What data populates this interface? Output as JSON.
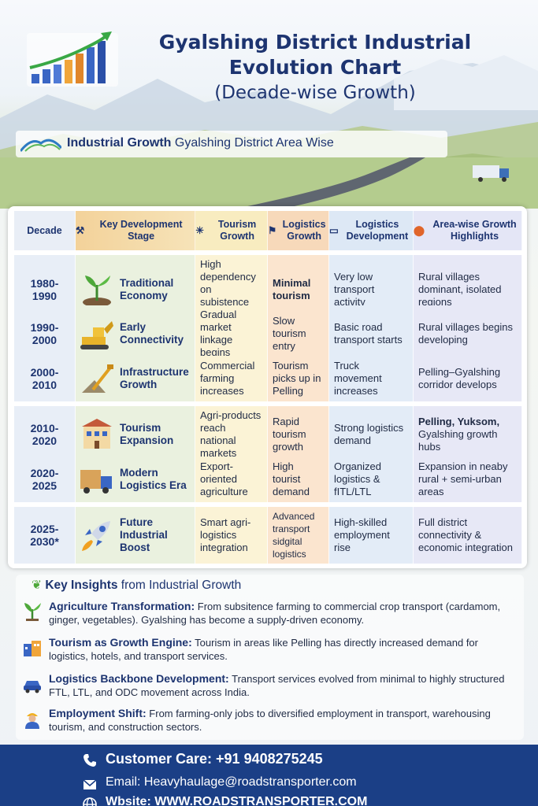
{
  "header": {
    "title_line1": "Gyalshing District Industrial",
    "title_line2": "Evolution Chart",
    "title_line3": "(Decade-wise Growth)",
    "banner_bold": "Industrial Growth",
    "banner_rest": "Gyalshing District Area Wise"
  },
  "table": {
    "headers": [
      "Decade",
      "Key Development Stage",
      "Tourism Growth",
      "Logistics Growth",
      "Logistics Development",
      "Area-wise Growth Highlights"
    ],
    "rows": [
      {
        "decade": "1980-\n1990",
        "stage": "Traditional Economy",
        "tourism": "High dependency on subistence farming",
        "logistics_growth": "Minimal tourism",
        "logistics_dev": "Very low transport activity",
        "area": "Rural villages dominant, isolated regions",
        "area_bold": ""
      },
      {
        "decade": "1990-\n2000",
        "stage": "Early Connectivity",
        "tourism": "Gradual market linkage begins",
        "logistics_growth": "Slow tourism entry",
        "logistics_dev": "Basic road transport starts",
        "area": "Rural villages begins developing",
        "area_bold": ""
      },
      {
        "decade": "2000-\n2010",
        "stage": "Infrastructure Growth",
        "tourism": "Commercial farming increases",
        "logistics_growth": "Tourism picks up in Pelling",
        "logistics_dev": "Truck movement increases",
        "area": "Pelling–Gyalshing corridor develops",
        "area_bold": ""
      },
      {
        "decade": "2010-\n2020",
        "stage": "Tourism Expansion",
        "tourism": "Agri-products reach national markets",
        "logistics_growth": "Rapid tourism growth",
        "logistics_dev": "Strong logistics demand",
        "area": "Gyalshing growth hubs",
        "area_bold": "Pelling, Yuksom,"
      },
      {
        "decade": "2020-\n2025",
        "stage": "Modern Logistics Era",
        "tourism": "Export-oriented agriculture",
        "logistics_growth": "High tourist demand",
        "logistics_dev": "Organized logistics & fITL/LTL",
        "area": "Expansion in neaby rural + semi-urban areas",
        "area_bold": ""
      },
      {
        "decade": "2025-\n2030*",
        "stage": "Future Industrial Boost",
        "tourism": "Smart agri-logistics integration",
        "logistics_growth": "Advanced transport sidgital logistics",
        "logistics_dev": "High-skilled employment rise",
        "area": "Full district connectivity & economic integration",
        "area_bold": ""
      }
    ]
  },
  "insights": {
    "title_bold": "Key Insights",
    "title_rest": "from Industrial Growth",
    "items": [
      {
        "heading": "Agriculture Transformation:",
        "text": "From subsitence farming to commercial crop transport (cardamom, ginger, vegetables). Gyalshing has become a supply-driven economy."
      },
      {
        "heading": "Tourism as Growth Engine:",
        "text": "Tourism in areas like Pelling has directly increased demand for logistics, hotels, and transport services."
      },
      {
        "heading": "Logistics Backbone Development:",
        "text": "Transport services evolved from minimal to highly structured FTL, LTL, and ODC movement across India."
      },
      {
        "heading": "Employment Shift:",
        "text": "From farming-only jobs to diversified employment in transport, warehousing tourism, and construction sectors."
      }
    ]
  },
  "footer": {
    "customer_care": "Customer Care:  +91 9408275245",
    "email": "Email: Heavyhaulage@roadstransporter.com",
    "website": "Wbsite:  WWW.ROADSTRANSPORTER.COM"
  }
}
